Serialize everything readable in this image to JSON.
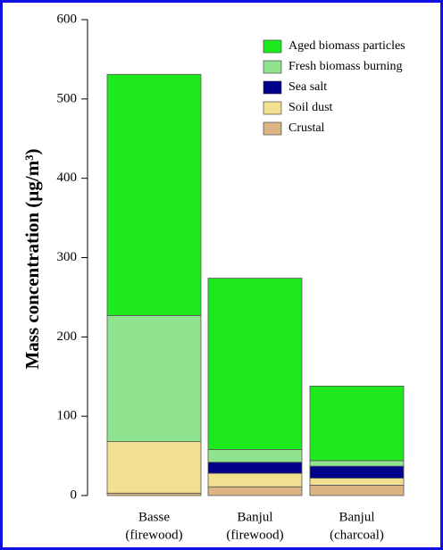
{
  "chart_data": {
    "type": "stacked_bar",
    "y_label": "Mass concentration (µg/m³)",
    "categories": [
      [
        "Basse",
        "(firewood)"
      ],
      [
        "Banjul",
        "(firewood)"
      ],
      [
        "Banjul",
        "(charcoal)"
      ]
    ],
    "series": [
      {
        "name": "Aged biomass particles",
        "color": "#1ee81e",
        "values": [
          304,
          216,
          94
        ]
      },
      {
        "name": "Fresh biomass burning",
        "color": "#90e490",
        "values": [
          159,
          16,
          7
        ]
      },
      {
        "name": "Sea salt",
        "color": "#00008b",
        "values": [
          0,
          14,
          15
        ]
      },
      {
        "name": "Soil dust",
        "color": "#f0e090",
        "values": [
          65,
          17,
          9
        ]
      },
      {
        "name": "Crustal",
        "color": "#dcb482",
        "values": [
          3,
          11,
          13
        ]
      }
    ],
    "ylim": [
      0,
      600
    ],
    "yticks": [
      0,
      100,
      200,
      300,
      400,
      500,
      600
    ]
  }
}
